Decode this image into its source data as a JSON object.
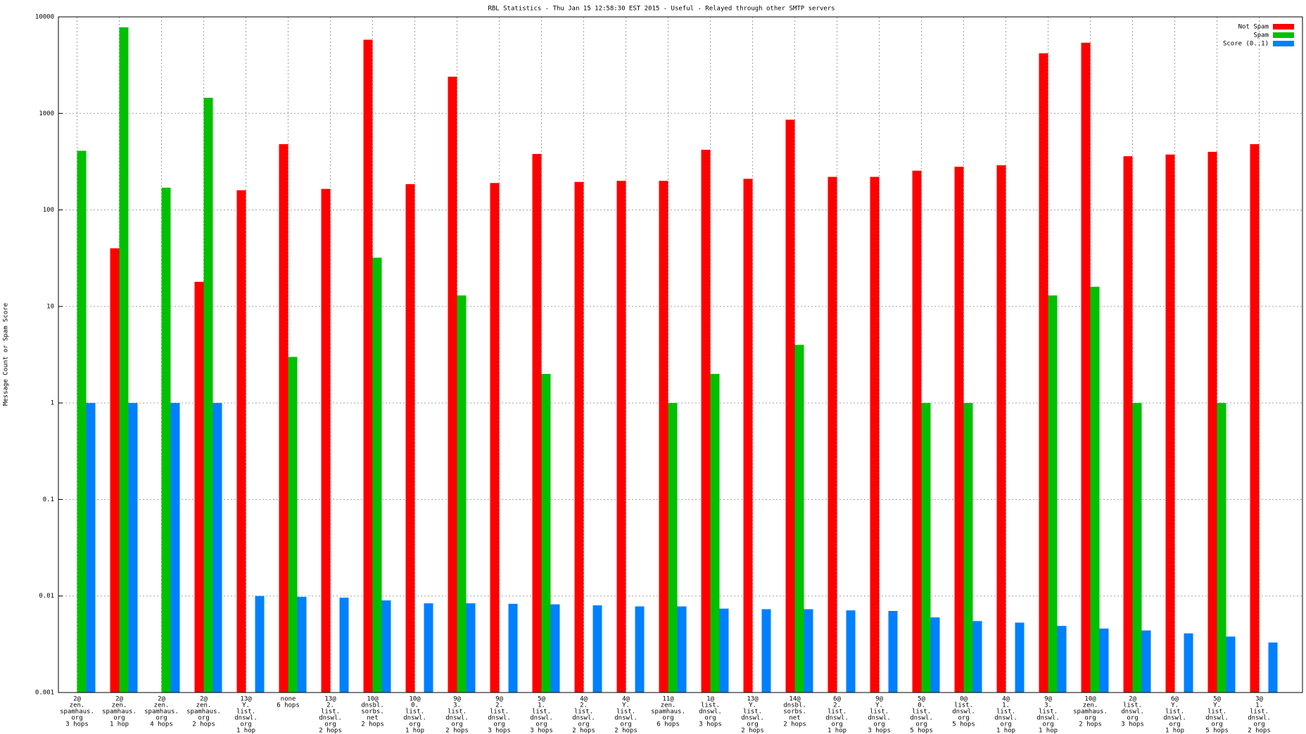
{
  "chart_data": {
    "type": "bar",
    "title": "RBL Statistics - Thu Jan 15 12:58:30 EST 2015 - Useful - Relayed through other SMTP servers",
    "y_label": "Message Count or Spam Score",
    "log_scale": true,
    "grid": true,
    "legend_position": "top-right",
    "ylim": [
      0.001,
      10000
    ],
    "yticks": [
      0.001,
      0.01,
      0.1,
      1,
      10,
      100,
      1000,
      10000
    ],
    "categories": [
      [
        "2@",
        "zen.",
        "spamhaus.",
        "org",
        "3 hops"
      ],
      [
        "2@",
        "zen.",
        "spamhaus.",
        "org",
        "1 hop"
      ],
      [
        "2@",
        "zen.",
        "spamhaus.",
        "org",
        "4 hops"
      ],
      [
        "2@",
        "zen.",
        "spamhaus.",
        "org",
        "2 hops"
      ],
      [
        "13@",
        "Y.",
        "list.",
        "dnswl.",
        "org",
        "1 hop"
      ],
      [
        "none",
        "6 hops"
      ],
      [
        "13@",
        "2.",
        "list.",
        "dnswl.",
        "org",
        "2 hops"
      ],
      [
        "10@",
        "dnsbl.",
        "sorbs.",
        "net",
        "2 hops"
      ],
      [
        "10@",
        "0.",
        "list.",
        "dnswl.",
        "org",
        "1 hop"
      ],
      [
        "9@",
        "3.",
        "list.",
        "dnswl.",
        "org",
        "2 hops"
      ],
      [
        "9@",
        "2.",
        "list.",
        "dnswl.",
        "org",
        "3 hops"
      ],
      [
        "5@",
        "1.",
        "list.",
        "dnswl.",
        "org",
        "3 hops"
      ],
      [
        "4@",
        "2.",
        "list.",
        "dnswl.",
        "org",
        "2 hops"
      ],
      [
        "4@",
        "Y.",
        "list.",
        "dnswl.",
        "org",
        "2 hops"
      ],
      [
        "11@",
        "zen.",
        "spamhaus.",
        "org",
        "6 hops"
      ],
      [
        "1@",
        "list.",
        "dnswl.",
        "org",
        "3 hops"
      ],
      [
        "13@",
        "Y.",
        "list.",
        "dnswl.",
        "org",
        "2 hops"
      ],
      [
        "14@",
        "dnsbl.",
        "sorbs.",
        "net",
        "2 hops"
      ],
      [
        "6@",
        "2.",
        "list.",
        "dnswl.",
        "org",
        "1 hop"
      ],
      [
        "9@",
        "Y.",
        "list.",
        "dnswl.",
        "org",
        "3 hops"
      ],
      [
        "5@",
        "0.",
        "list.",
        "dnswl.",
        "org",
        "5 hops"
      ],
      [
        "0@",
        "list.",
        "dnswl.",
        "org",
        "5 hops"
      ],
      [
        "4@",
        "1.",
        "list.",
        "dnswl.",
        "org",
        "1 hop"
      ],
      [
        "9@",
        "3.",
        "list.",
        "dnswl.",
        "org",
        "1 hop"
      ],
      [
        "10@",
        "zen.",
        "spamhaus.",
        "org",
        "2 hops"
      ],
      [
        "2@",
        "list.",
        "dnswl.",
        "org",
        "3 hops"
      ],
      [
        "6@",
        "Y.",
        "list.",
        "dnswl.",
        "org",
        "1 hop"
      ],
      [
        "5@",
        "Y.",
        "list.",
        "dnswl.",
        "org",
        "5 hops"
      ],
      [
        "3@",
        "1.",
        "list.",
        "dnswl.",
        "org",
        "2 hops"
      ]
    ],
    "series": [
      {
        "name": "Not Spam",
        "color": "#ff0000",
        "values": [
          null,
          40,
          null,
          18,
          160,
          480,
          165,
          5800,
          185,
          2400,
          190,
          380,
          195,
          200,
          200,
          420,
          210,
          860,
          220,
          220,
          255,
          280,
          290,
          4200,
          5400,
          360,
          375,
          400,
          480
        ]
      },
      {
        "name": "Spam",
        "color": "#00c000",
        "values": [
          410,
          7800,
          170,
          1450,
          null,
          3,
          null,
          32,
          null,
          13,
          null,
          2,
          null,
          null,
          1,
          2,
          null,
          4,
          null,
          null,
          1,
          1,
          null,
          13,
          16,
          1,
          null,
          1,
          null
        ]
      },
      {
        "name": "Score (0..1)",
        "color": "#0080ff",
        "values": [
          1,
          1,
          1,
          1,
          0.01,
          0.0098,
          0.0096,
          0.009,
          0.0084,
          0.0084,
          0.0083,
          0.0082,
          0.008,
          0.0078,
          0.0078,
          0.0074,
          0.0073,
          0.0073,
          0.0071,
          0.007,
          0.006,
          0.0055,
          0.0053,
          0.0049,
          0.0046,
          0.0044,
          0.0041,
          0.0038,
          0.0033
        ]
      }
    ]
  }
}
